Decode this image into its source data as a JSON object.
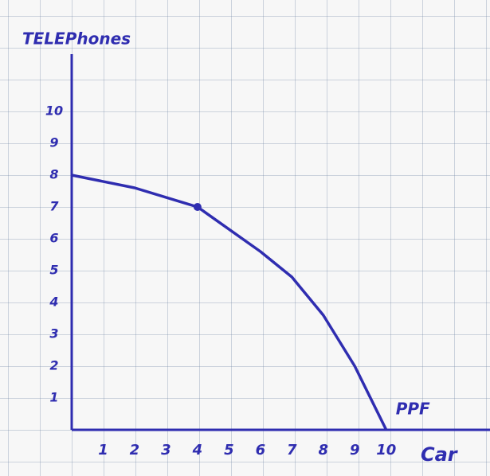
{
  "chart_data": {
    "type": "line",
    "y_label": "TELEPhones",
    "x_label": "Car",
    "x": [
      0,
      2,
      4,
      6,
      7,
      8,
      9,
      10
    ],
    "series": [
      {
        "name": "PPF",
        "color": "#2f2db0",
        "values": [
          8,
          7.6,
          7,
          5.6,
          4.8,
          3.6,
          2,
          0
        ]
      }
    ],
    "point": {
      "x": 4,
      "y": 7
    },
    "xlim": [
      0,
      13.3
    ],
    "ylim": [
      0,
      11.8
    ],
    "xticks": [
      1,
      2,
      3,
      4,
      5,
      6,
      7,
      8,
      9,
      10
    ],
    "yticks": [
      1,
      2,
      3,
      4,
      5,
      6,
      7,
      8,
      9,
      10
    ]
  }
}
